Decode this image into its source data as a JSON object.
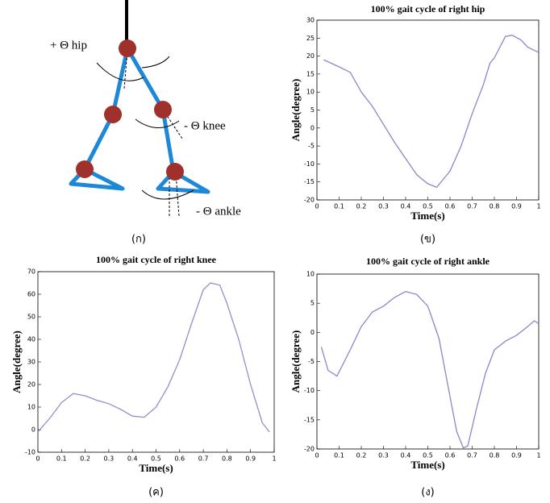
{
  "diagram": {
    "labels": [
      "+ Θ hip",
      "- Θ knee",
      "- Θ ankle"
    ],
    "caption": "(ก)"
  },
  "chart_data": [
    {
      "type": "line",
      "title": "100% gait cycle of right hip",
      "x_label": "Time(s)",
      "y_label": "Angle(degree)",
      "caption": "(ข)",
      "color": "#8888cc",
      "x": [
        0.03,
        0.1,
        0.15,
        0.2,
        0.25,
        0.3,
        0.35,
        0.4,
        0.45,
        0.5,
        0.54,
        0.6,
        0.65,
        0.7,
        0.75,
        0.78,
        0.8,
        0.85,
        0.88,
        0.92,
        0.95,
        1
      ],
      "values": [
        19,
        17,
        15.5,
        10,
        6,
        1,
        -4,
        -8.5,
        -13,
        -15.5,
        -16.5,
        -12,
        -5,
        4,
        12,
        18,
        19.5,
        25.5,
        25.8,
        24.5,
        22.5,
        21
      ],
      "xlim": [
        0,
        1
      ],
      "xticks": [
        0,
        0.1,
        0.2,
        0.3,
        0.4,
        0.5,
        0.6,
        0.7,
        0.8,
        0.9,
        1
      ],
      "ylim": [
        -20,
        30
      ],
      "yticks": [
        -20,
        -15,
        -10,
        -5,
        0,
        5,
        10,
        15,
        20,
        25,
        30
      ]
    },
    {
      "type": "line",
      "title": "100% gait cycle of right knee",
      "x_label": "Time(s)",
      "y_label": "Angle(degree)",
      "caption": "(ค)",
      "color": "#9090c8",
      "x": [
        0,
        0.05,
        0.1,
        0.15,
        0.2,
        0.25,
        0.3,
        0.35,
        0.4,
        0.45,
        0.5,
        0.55,
        0.6,
        0.65,
        0.7,
        0.73,
        0.77,
        0.8,
        0.85,
        0.9,
        0.95,
        0.98
      ],
      "values": [
        -1,
        5,
        12,
        16,
        15,
        13,
        11.5,
        9,
        6,
        5.5,
        10,
        19,
        31,
        47,
        62,
        65,
        64,
        56,
        40,
        20,
        3,
        -1
      ],
      "xlim": [
        0,
        1
      ],
      "xticks": [
        0,
        0.1,
        0.2,
        0.3,
        0.4,
        0.5,
        0.6,
        0.7,
        0.8,
        0.9,
        1
      ],
      "ylim": [
        -10,
        70
      ],
      "yticks": [
        -10,
        0,
        10,
        20,
        30,
        40,
        50,
        60,
        70
      ]
    },
    {
      "type": "line",
      "title": "100% gait cycle of right ankle",
      "x_label": "Time(s)",
      "y_label": "Angle(degree)",
      "caption": "(ง)",
      "color": "#8888cc",
      "x": [
        0.02,
        0.05,
        0.09,
        0.15,
        0.2,
        0.25,
        0.3,
        0.35,
        0.4,
        0.45,
        0.5,
        0.55,
        0.6,
        0.63,
        0.66,
        0.68,
        0.72,
        0.76,
        0.8,
        0.85,
        0.9,
        0.95,
        0.98,
        1
      ],
      "values": [
        -2.5,
        -6.5,
        -7.5,
        -3,
        1,
        3.5,
        4.5,
        6,
        7,
        6.5,
        4.5,
        -1,
        -11,
        -17,
        -19.8,
        -19.5,
        -13,
        -7,
        -3,
        -1.5,
        -0.5,
        1,
        2,
        1.5
      ],
      "xlim": [
        0,
        1
      ],
      "xticks": [
        0,
        0.1,
        0.2,
        0.3,
        0.4,
        0.5,
        0.6,
        0.7,
        0.8,
        0.9,
        1
      ],
      "ylim": [
        -20,
        10
      ],
      "yticks": [
        -20,
        -15,
        -10,
        -5,
        0,
        5,
        10
      ]
    }
  ]
}
